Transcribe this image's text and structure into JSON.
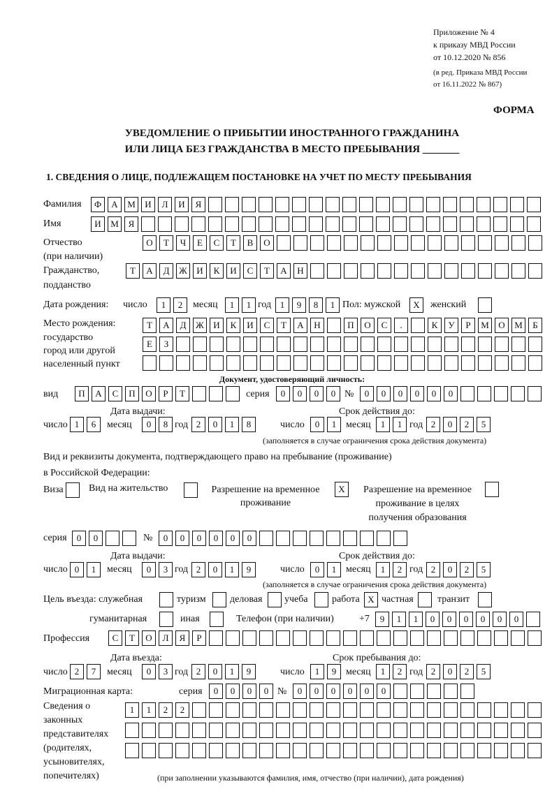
{
  "header": {
    "appendix": "Приложение № 4",
    "order": "к приказу МВД России",
    "order_date": "от 10.12.2020 № 856",
    "edition1": "(в ред. Приказа МВД России",
    "edition2": "от 16.11.2022 № 867)",
    "form_label": "ФОРМА",
    "title1": "УВЕДОМЛЕНИЕ О ПРИБЫТИИ ИНОСТРАННОГО ГРАЖДАНИНА",
    "title2": "ИЛИ ЛИЦА БЕЗ ГРАЖДАНСТВА В МЕСТО ПРЕБЫВАНИЯ _______",
    "section1": "1. СВЕДЕНИЯ О ЛИЦЕ, ПОДЛЕЖАЩЕМ ПОСТАНОВКЕ НА УЧЕТ ПО МЕСТУ ПРЕБЫВАНИЯ"
  },
  "labels": {
    "surname": "Фамилия",
    "name": "Имя",
    "patronymic1": "Отчество",
    "patronymic2": "(при наличии)",
    "citizenship1": "Гражданство,",
    "citizenship2": "подданство",
    "birth_date": "Дата рождения:",
    "day": "число",
    "month": "месяц",
    "year": "год",
    "sex": "Пол: мужской",
    "female": "женский",
    "birth_place1": "Место рождения:",
    "birth_place2": "государство",
    "birth_place3": "город или другой",
    "birth_place4": "населенный пункт",
    "id_doc": "Документ, удостоверяющий личность:",
    "kind": "вид",
    "series": "серия",
    "number": "№",
    "issue_date": "Дата выдачи:",
    "valid_until": "Срок действия до:",
    "validity_note": "(заполняется в случае ограничения срока действия документа)",
    "stay_doc1": "Вид и реквизиты документа, подтверждающего право на пребывание (проживание)",
    "stay_doc2": "в Российской Федерации:",
    "visa": "Виза",
    "residence_permit": "Вид на жительство",
    "temp_permit1": "Разрешение на временное",
    "temp_permit2": "проживание",
    "temp_edu1": "Разрешение на временное",
    "temp_edu2": "проживание в целях",
    "temp_edu3": "получения образования",
    "purpose": "Цель въезда: служебная",
    "tourism": "туризм",
    "business": "деловая",
    "study": "учеба",
    "work": "работа",
    "private": "частная",
    "transit": "транзит",
    "humanitarian": "гуманитарная",
    "other": "иная",
    "phone": "Телефон (при наличии)",
    "phone_prefix": "+7",
    "profession": "Профессия",
    "entry_date": "Дата въезда:",
    "stay_until": "Срок пребывания до:",
    "migration_card": "Миграционная карта:",
    "reps1": "Сведения о",
    "reps2": "законных",
    "reps3": "представителях",
    "reps4": "(родителях,",
    "reps5": "усыновителях,",
    "reps6": "попечителях)",
    "reps_note": "(при заполнении указываются фамилия, имя, отчество (при наличии), дата рождения)"
  },
  "person": {
    "surname": [
      "Ф",
      "А",
      "М",
      "И",
      "Л",
      "И",
      "Я"
    ],
    "name": [
      "И",
      "М",
      "Я"
    ],
    "patronymic": [
      "О",
      "Т",
      "Ч",
      "Е",
      "С",
      "Т",
      "В",
      "О"
    ],
    "citizenship": [
      "Т",
      "А",
      "Д",
      "Ж",
      "И",
      "К",
      "И",
      "С",
      "Т",
      "А",
      "Н"
    ],
    "birth_day": [
      "1",
      "2"
    ],
    "birth_month": [
      "1",
      "1"
    ],
    "birth_year": [
      "1",
      "9",
      "8",
      "1"
    ],
    "sex_male": "X",
    "sex_female": "",
    "birth_place_1": [
      "Т",
      "А",
      "Д",
      "Ж",
      "И",
      "К",
      "И",
      "С",
      "Т",
      "А",
      "Н",
      "",
      "П",
      "О",
      "С",
      ".",
      "",
      "К",
      "У",
      "Р",
      "М",
      "О",
      "М",
      "Б"
    ],
    "birth_place_2": [
      "Е",
      "З"
    ],
    "birth_place_3": []
  },
  "id_document": {
    "kind": [
      "П",
      "А",
      "С",
      "П",
      "О",
      "Р",
      "Т"
    ],
    "series": [
      "0",
      "0",
      "0",
      "0"
    ],
    "number": [
      "0",
      "0",
      "0",
      "0",
      "0",
      "0"
    ],
    "issue_day": [
      "1",
      "6"
    ],
    "issue_month": [
      "0",
      "8"
    ],
    "issue_year": [
      "2",
      "0",
      "1",
      "8"
    ],
    "valid_day": [
      "0",
      "1"
    ],
    "valid_month": [
      "1",
      "1"
    ],
    "valid_year": [
      "2",
      "0",
      "2",
      "5"
    ]
  },
  "stay_document": {
    "visa": "",
    "residence_permit": "",
    "temp_permit": "X",
    "temp_edu": "",
    "series": [
      "0",
      "0"
    ],
    "number": [
      "0",
      "0",
      "0",
      "0",
      "0",
      "0"
    ],
    "issue_day": [
      "0",
      "1"
    ],
    "issue_month": [
      "0",
      "3"
    ],
    "issue_year": [
      "2",
      "0",
      "1",
      "9"
    ],
    "valid_day": [
      "0",
      "1"
    ],
    "valid_month": [
      "1",
      "2"
    ],
    "valid_year": [
      "2",
      "0",
      "2",
      "5"
    ]
  },
  "purpose": {
    "official": "",
    "tourism": "",
    "business": "",
    "study": "",
    "work": "X",
    "private": "",
    "transit": "",
    "humanitarian": "",
    "other": ""
  },
  "phone": [
    "9",
    "1",
    "1",
    "0",
    "0",
    "0",
    "0",
    "0",
    "0"
  ],
  "profession": [
    "С",
    "Т",
    "О",
    "Л",
    "Я",
    "Р"
  ],
  "entry": {
    "day": [
      "2",
      "7"
    ],
    "month": [
      "0",
      "3"
    ],
    "year": [
      "2",
      "0",
      "1",
      "9"
    ],
    "stay_day": [
      "1",
      "9"
    ],
    "stay_month": [
      "1",
      "2"
    ],
    "stay_year": [
      "2",
      "0",
      "2",
      "5"
    ]
  },
  "migration_card": {
    "series": [
      "0",
      "0",
      "0",
      "0"
    ],
    "number": [
      "0",
      "0",
      "0",
      "0",
      "0",
      "0"
    ]
  },
  "representatives": {
    "row1": [
      "1",
      "1",
      "2",
      "2"
    ],
    "row2": [],
    "row3": []
  }
}
